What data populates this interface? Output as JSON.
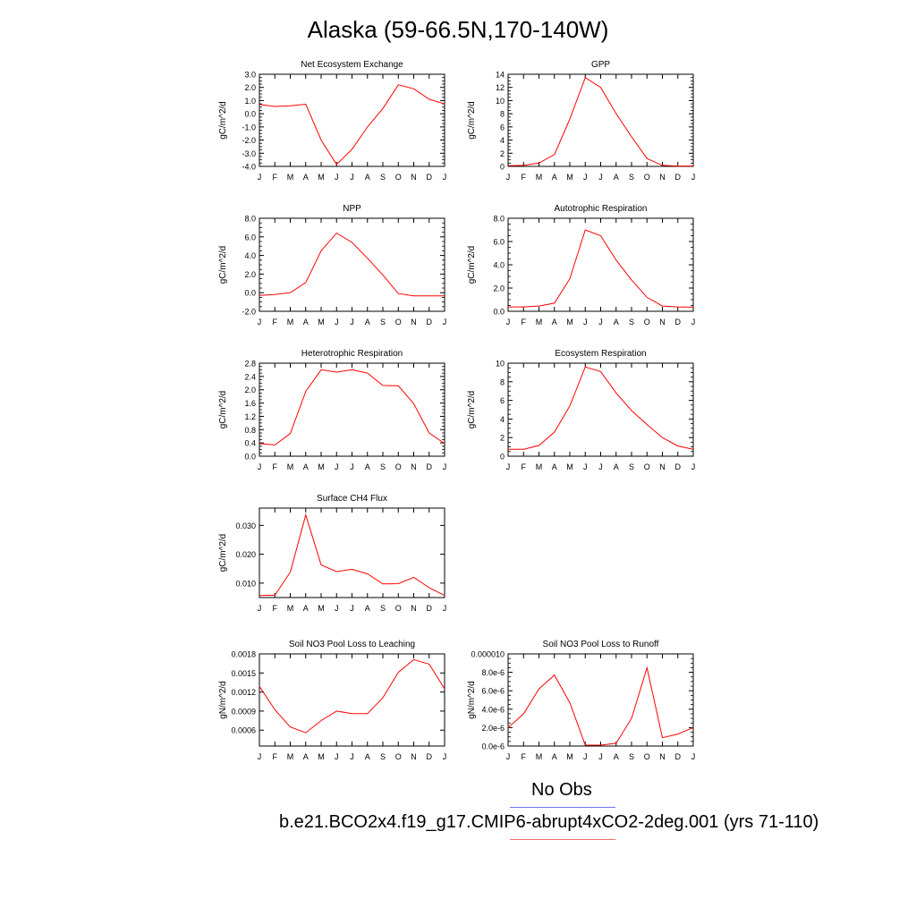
{
  "title": "Alaska (59-66.5N,170-140W)",
  "colors": {
    "series": "#ff0000",
    "obs_line": "#6b73f0",
    "model_line": "#f07070",
    "axis": "#000000"
  },
  "legend": {
    "obs_label": "No Obs",
    "model_label": "b.e21.BCO2x4.f19_g17.CMIP6-abrupt4xCO2-2deg.001 (yrs 71-110)"
  },
  "chart_data": [
    {
      "type": "line",
      "title": "Net Ecosystem Exchange",
      "ylabel": "gC/m^2/d",
      "categories": [
        "J",
        "F",
        "M",
        "A",
        "M",
        "J",
        "J",
        "A",
        "S",
        "O",
        "N",
        "D",
        "J"
      ],
      "ylim": [
        -4.0,
        3.0
      ],
      "yticks": [
        "3.0",
        "2.0",
        "1.0",
        "0.0",
        "-1.0",
        "-2.0",
        "-3.0",
        "-4.0"
      ],
      "values": [
        0.7,
        0.55,
        0.6,
        0.72,
        -2.0,
        -3.85,
        -2.7,
        -1.0,
        0.4,
        2.2,
        1.9,
        1.1,
        0.75
      ]
    },
    {
      "type": "line",
      "title": "GPP",
      "ylabel": "gC/m^2/d",
      "categories": [
        "J",
        "F",
        "M",
        "A",
        "M",
        "J",
        "J",
        "A",
        "S",
        "O",
        "N",
        "D",
        "J"
      ],
      "ylim": [
        0,
        14
      ],
      "yticks": [
        "14",
        "12",
        "10",
        "8",
        "6",
        "4",
        "2",
        "0"
      ],
      "values": [
        0.1,
        0.15,
        0.5,
        1.8,
        7.2,
        13.5,
        12.0,
        8.0,
        4.5,
        1.2,
        0.15,
        0.05,
        0.05
      ]
    },
    {
      "type": "line",
      "title": "NPP",
      "ylabel": "gC/m^2/d",
      "categories": [
        "J",
        "F",
        "M",
        "A",
        "M",
        "J",
        "J",
        "A",
        "S",
        "O",
        "N",
        "D",
        "J"
      ],
      "ylim": [
        -2.0,
        8.0
      ],
      "yticks": [
        "8.0",
        "6.0",
        "4.0",
        "2.0",
        "0.0",
        "-2.0"
      ],
      "values": [
        -0.3,
        -0.2,
        0.0,
        1.1,
        4.5,
        6.4,
        5.4,
        3.7,
        1.9,
        -0.1,
        -0.35,
        -0.35,
        -0.35
      ]
    },
    {
      "type": "line",
      "title": "Autotrophic Respiration",
      "ylabel": "gC/m^2/d",
      "categories": [
        "J",
        "F",
        "M",
        "A",
        "M",
        "J",
        "J",
        "A",
        "S",
        "O",
        "N",
        "D",
        "J"
      ],
      "ylim": [
        0,
        8.0
      ],
      "yticks": [
        "8.0",
        "6.0",
        "4.0",
        "2.0",
        "0.0"
      ],
      "values": [
        0.38,
        0.38,
        0.45,
        0.7,
        2.8,
        7.0,
        6.5,
        4.4,
        2.7,
        1.2,
        0.45,
        0.38,
        0.35
      ]
    },
    {
      "type": "line",
      "title": "Heterotrophic Respiration",
      "ylabel": "gC/m^2/d",
      "categories": [
        "J",
        "F",
        "M",
        "A",
        "M",
        "J",
        "J",
        "A",
        "S",
        "O",
        "N",
        "D",
        "J"
      ],
      "ylim": [
        0,
        2.8
      ],
      "yticks": [
        "2.8",
        "2.4",
        "2.0",
        "1.6",
        "1.2",
        "0.8",
        "0.4",
        "0.0"
      ],
      "values": [
        0.38,
        0.34,
        0.68,
        1.95,
        2.6,
        2.53,
        2.6,
        2.5,
        2.13,
        2.12,
        1.58,
        0.7,
        0.38
      ]
    },
    {
      "type": "line",
      "title": "Ecosystem Respiration",
      "ylabel": "gC/m^2/d",
      "categories": [
        "J",
        "F",
        "M",
        "A",
        "M",
        "J",
        "J",
        "A",
        "S",
        "O",
        "N",
        "D",
        "J"
      ],
      "ylim": [
        0,
        10
      ],
      "yticks": [
        "10",
        "8",
        "6",
        "4",
        "2",
        "0"
      ],
      "values": [
        0.75,
        0.75,
        1.15,
        2.6,
        5.4,
        9.6,
        9.1,
        6.8,
        4.9,
        3.4,
        2.0,
        1.1,
        0.75
      ]
    },
    {
      "type": "line",
      "title": "Surface CH4 Flux",
      "ylabel": "gC/m^2/d",
      "categories": [
        "J",
        "F",
        "M",
        "A",
        "M",
        "J",
        "J",
        "A",
        "S",
        "O",
        "N",
        "D",
        "J"
      ],
      "ylim": [
        0.005,
        0.036
      ],
      "yticks": [
        "0.030",
        "0.020",
        "0.010"
      ],
      "ytick_values": [
        0.03,
        0.02,
        0.01
      ],
      "values": [
        0.0057,
        0.0058,
        0.0138,
        0.0336,
        0.0163,
        0.014,
        0.0148,
        0.0132,
        0.0097,
        0.0098,
        0.012,
        0.0084,
        0.0057
      ]
    },
    {
      "type": "line",
      "title": "Soil NO3 Pool Loss to Leaching",
      "ylabel": "gN/m^2/d",
      "categories": [
        "J",
        "F",
        "M",
        "A",
        "M",
        "J",
        "J",
        "A",
        "S",
        "O",
        "N",
        "D",
        "J"
      ],
      "ylim": [
        0.00035,
        0.0018
      ],
      "yticks": [
        "0.0018",
        "0.0015",
        "0.0012",
        "0.0009",
        "0.0006"
      ],
      "ytick_values": [
        0.0018,
        0.0015,
        0.0012,
        0.0009,
        0.0006
      ],
      "values": [
        0.00129,
        0.00092,
        0.00065,
        0.00056,
        0.00075,
        0.0009,
        0.00086,
        0.00086,
        0.00111,
        0.00151,
        0.00171,
        0.00164,
        0.00125
      ]
    },
    {
      "type": "line",
      "title": "Soil NO3 Pool Loss to Runoff",
      "ylabel": "gN/m^2/d",
      "categories": [
        "J",
        "F",
        "M",
        "A",
        "M",
        "J",
        "J",
        "A",
        "S",
        "O",
        "N",
        "D",
        "J"
      ],
      "ylim": [
        0,
        1e-05
      ],
      "yticks": [
        "0.000010",
        "8.0e-6",
        "6.0e-6",
        "4.0e-6",
        "2.0e-6",
        "0.0e-6"
      ],
      "values": [
        2e-06,
        3.5e-06,
        6.2e-06,
        7.7e-06,
        4.7e-06,
        1e-07,
        1e-07,
        3e-07,
        3e-06,
        8.5e-06,
        9e-07,
        1.3e-06,
        2e-06
      ]
    }
  ]
}
